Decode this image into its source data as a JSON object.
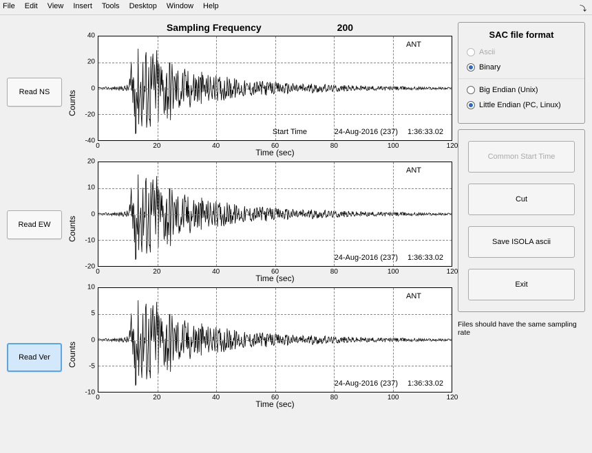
{
  "menu": {
    "items": [
      "File",
      "Edit",
      "View",
      "Insert",
      "Tools",
      "Desktop",
      "Window",
      "Help"
    ]
  },
  "title": {
    "label": "Sampling Frequency",
    "value": "200"
  },
  "buttons_left": [
    {
      "label": "Read NS",
      "active": false
    },
    {
      "label": "Read EW",
      "active": false
    },
    {
      "label": "Read Ver",
      "active": true
    }
  ],
  "charts": [
    {
      "ylabel": "Counts",
      "xlabel": "Time (sec)",
      "xlim": [
        0,
        120
      ],
      "xticks": [
        0,
        20,
        40,
        60,
        80,
        100,
        120
      ],
      "ylim": [
        -40,
        40
      ],
      "yticks": [
        -40,
        -20,
        0,
        20,
        40
      ],
      "station": "ANT",
      "show_start_label": true,
      "start_label": "Start Time",
      "date": "24-Aug-2016 (237)",
      "time": "1:36:33.02",
      "grid_color": "#888888",
      "line_color": "#000000",
      "bg": "#ffffff",
      "fontsize_label": 12,
      "fontsize_tick": 10
    },
    {
      "ylabel": "Counts",
      "xlabel": "Time (sec)",
      "xlim": [
        0,
        120
      ],
      "xticks": [
        0,
        20,
        40,
        60,
        80,
        100,
        120
      ],
      "ylim": [
        -20,
        20
      ],
      "yticks": [
        -20,
        -10,
        0,
        10,
        20
      ],
      "station": "ANT",
      "show_start_label": false,
      "start_label": "",
      "date": "24-Aug-2016 (237)",
      "time": "1:36:33.02",
      "grid_color": "#888888",
      "line_color": "#000000",
      "bg": "#ffffff",
      "fontsize_label": 12,
      "fontsize_tick": 10
    },
    {
      "ylabel": "Counts",
      "xlabel": "Time (sec)",
      "xlim": [
        0,
        120
      ],
      "xticks": [
        0,
        20,
        40,
        60,
        80,
        100,
        120
      ],
      "ylim": [
        -10,
        10
      ],
      "yticks": [
        -10,
        -5,
        0,
        5,
        10
      ],
      "station": "ANT",
      "show_start_label": false,
      "start_label": "",
      "date": "24-Aug-2016 (237)",
      "time": "1:36:33.02",
      "grid_color": "#888888",
      "line_color": "#000000",
      "bg": "#ffffff",
      "fontsize_label": 12,
      "fontsize_tick": 10
    }
  ],
  "waveform_envelope": [
    [
      0,
      0.02
    ],
    [
      8,
      0.04
    ],
    [
      10,
      0.08
    ],
    [
      12,
      0.85
    ],
    [
      13,
      0.95
    ],
    [
      14,
      0.72
    ],
    [
      15,
      0.98
    ],
    [
      16,
      0.9
    ],
    [
      17,
      0.78
    ],
    [
      18,
      0.95
    ],
    [
      19,
      0.7
    ],
    [
      20,
      0.88
    ],
    [
      22,
      0.6
    ],
    [
      24,
      0.7
    ],
    [
      26,
      0.45
    ],
    [
      28,
      0.5
    ],
    [
      30,
      0.38
    ],
    [
      33,
      0.42
    ],
    [
      36,
      0.3
    ],
    [
      40,
      0.25
    ],
    [
      45,
      0.22
    ],
    [
      50,
      0.16
    ],
    [
      55,
      0.15
    ],
    [
      60,
      0.12
    ],
    [
      65,
      0.11
    ],
    [
      70,
      0.1
    ],
    [
      75,
      0.08
    ],
    [
      80,
      0.07
    ],
    [
      85,
      0.06
    ],
    [
      90,
      0.05
    ],
    [
      95,
      0.04
    ],
    [
      100,
      0.04
    ],
    [
      110,
      0.03
    ],
    [
      120,
      0.02
    ]
  ],
  "sac_panel": {
    "title": "SAC file format",
    "group1": [
      {
        "label": "Ascii",
        "checked": false,
        "disabled": true
      },
      {
        "label": "Binary",
        "checked": true,
        "disabled": false
      }
    ],
    "group2": [
      {
        "label": "Big Endian  (Unix)",
        "checked": false,
        "disabled": false
      },
      {
        "label": "Little Endian (PC, Linux)",
        "checked": true,
        "disabled": false
      }
    ]
  },
  "action_buttons": [
    {
      "label": "Common Start Time",
      "disabled": true
    },
    {
      "label": "Cut",
      "disabled": false
    },
    {
      "label": "Save ISOLA ascii",
      "disabled": false
    },
    {
      "label": "Exit",
      "disabled": false
    }
  ],
  "footnote": "Files should have the same sampling rate",
  "colors": {
    "window_bg": "#f0f0f0",
    "accent": "#2a6ac0",
    "active_btn_bg": "#d4e8fb",
    "active_btn_border": "#5aa6e0"
  }
}
